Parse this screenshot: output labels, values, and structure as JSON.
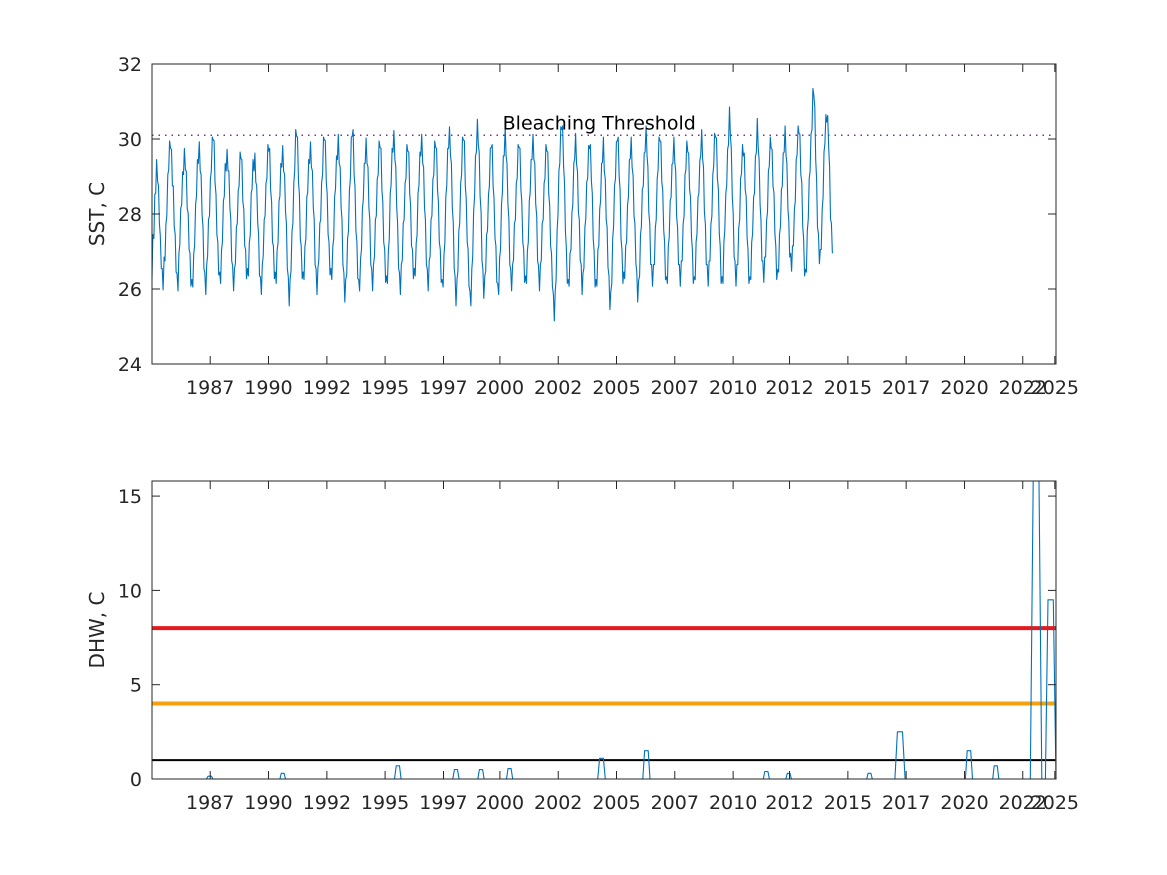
{
  "chart_data": [
    {
      "type": "line",
      "ylabel": "SST, C",
      "ylim": [
        24,
        32
      ],
      "yticks": [
        24,
        26,
        28,
        30,
        32
      ],
      "xlim": [
        "1985-01-01",
        "2025-01-20"
      ],
      "xticks": [
        {
          "date": "1987-08-01",
          "label": "1987"
        },
        {
          "date": "1990-03-01",
          "label": "1990"
        },
        {
          "date": "1992-10-01",
          "label": "1992"
        },
        {
          "date": "1995-05-01",
          "label": "1995"
        },
        {
          "date": "1997-12-01",
          "label": "1997"
        },
        {
          "date": "2000-06-01",
          "label": "2000"
        },
        {
          "date": "2003-01-01",
          "label": "2002"
        },
        {
          "date": "2005-08-01",
          "label": "2005"
        },
        {
          "date": "2008-03-01",
          "label": "2007"
        },
        {
          "date": "2010-10-01",
          "label": "2010"
        },
        {
          "date": "2013-04-01",
          "label": "2012"
        },
        {
          "date": "2015-11-01",
          "label": "2015"
        },
        {
          "date": "2018-06-01",
          "label": "2017"
        },
        {
          "date": "2021-01-01",
          "label": "2020"
        },
        {
          "date": "2023-08-01",
          "label": "2022"
        },
        {
          "date": "2025-01-01",
          "label": "2025"
        }
      ],
      "series": [
        {
          "color": "#0072BD",
          "x_start": "1985-01-01",
          "x_step_days": 15,
          "values": [
            26.4,
            27.2,
            27.6,
            28.4,
            28.8,
            29.2,
            29.0,
            28.5,
            28.0,
            27.3,
            26.8,
            26.3,
            26.1,
            26.6,
            27.0,
            27.6,
            28.2,
            28.8,
            29.3,
            29.7,
            30.0,
            29.6,
            29.0,
            28.5,
            27.8,
            27.2,
            26.7,
            26.3,
            26.2,
            26.7,
            27.3,
            27.9,
            28.5,
            29.0,
            29.3,
            29.5,
            29.3,
            28.9,
            28.4,
            27.9,
            27.3,
            26.7,
            26.2,
            26.0,
            26.3,
            26.8,
            27.4,
            28.0,
            28.6,
            29.2,
            29.6,
            29.8,
            29.4,
            28.8,
            28.1,
            27.4,
            26.8,
            26.3,
            26.1,
            26.4,
            27.0,
            27.6,
            28.2,
            28.8,
            29.4,
            29.8,
            30.1,
            29.7,
            29.1,
            28.4,
            27.7,
            27.0,
            26.5,
            26.2,
            26.4,
            26.9,
            27.5,
            28.1,
            28.6,
            29.1,
            29.4,
            29.6,
            29.4,
            28.9,
            28.3,
            27.6,
            27.0,
            26.5,
            26.2,
            26.3,
            26.8,
            27.4,
            28.0,
            28.5,
            29.0,
            29.4,
            29.6,
            29.2,
            28.6,
            28.0,
            27.4,
            26.8,
            26.4,
            26.3,
            26.6,
            27.1,
            27.7,
            28.3,
            28.8,
            29.2,
            29.4,
            29.5,
            29.1,
            28.5,
            27.9,
            27.2,
            26.6,
            26.2,
            26.1,
            26.4,
            27.0,
            27.6,
            28.2,
            28.7,
            29.2,
            29.6,
            29.8,
            29.5,
            28.9,
            28.2,
            27.5,
            26.9,
            26.4,
            26.2,
            26.4,
            26.9,
            27.5,
            28.1,
            28.6,
            29.1,
            29.5,
            29.7,
            29.4,
            28.8,
            28.2,
            27.5,
            26.8,
            26.2,
            25.8,
            26.0,
            26.6,
            27.3,
            28.0,
            28.7,
            29.4,
            30.0,
            30.2,
            29.8,
            29.1,
            28.4,
            27.6,
            26.9,
            26.4,
            26.2,
            26.5,
            27.0,
            27.6,
            28.2,
            28.7,
            29.2,
            29.6,
            29.8,
            29.5,
            28.9,
            28.3,
            27.6,
            26.9,
            26.4,
            26.1,
            26.3,
            26.9,
            27.5,
            28.1,
            28.7,
            29.3,
            29.8,
            30.1,
            29.7,
            29.1,
            28.4,
            27.7,
            27.0,
            26.5,
            26.3,
            26.5,
            27.0,
            27.6,
            28.2,
            28.8,
            29.3,
            29.7,
            30.0,
            29.6,
            29.0,
            28.3,
            27.6,
            26.9,
            26.3,
            25.9,
            26.0,
            26.5,
            27.1,
            27.8,
            28.5,
            29.2,
            29.8,
            30.2,
            30.0,
            29.3,
            28.6,
            27.8,
            27.0,
            26.4,
            26.0,
            26.2,
            26.7,
            27.3,
            27.9,
            28.5,
            29.1,
            29.6,
            29.9,
            29.6,
            29.0,
            28.3,
            27.6,
            26.9,
            26.4,
            26.2,
            26.4,
            27.0,
            27.6,
            28.2,
            28.8,
            29.3,
            29.7,
            29.9,
            29.5,
            28.9,
            28.2,
            27.5,
            26.8,
            26.3,
            26.1,
            26.4,
            26.9,
            27.6,
            28.3,
            28.9,
            29.5,
            29.9,
            30.1,
            29.7,
            29.0,
            28.3,
            27.5,
            26.8,
            26.3,
            26.1,
            26.4,
            26.9,
            27.5,
            28.1,
            28.7,
            29.2,
            29.6,
            29.8,
            29.4,
            28.8,
            28.1,
            27.4,
            26.8,
            26.4,
            26.3,
            26.6,
            27.1,
            27.7,
            28.3,
            28.9,
            29.4,
            29.8,
            30.0,
            29.6,
            29.0,
            28.3,
            27.6,
            26.9,
            26.4,
            26.2,
            26.5,
            27.0,
            27.6,
            28.2,
            28.8,
            29.3,
            29.7,
            29.9,
            29.5,
            28.9,
            28.2,
            27.5,
            26.8,
            26.3,
            26.0,
            26.3,
            26.8,
            27.5,
            28.2,
            28.9,
            29.5,
            30.0,
            30.2,
            29.8,
            29.1,
            28.3,
            27.5,
            26.8,
            26.2,
            25.8,
            26.0,
            26.6,
            27.3,
            28.0,
            28.7,
            29.3,
            29.8,
            30.1,
            29.7,
            29.0,
            28.3,
            27.5,
            26.8,
            26.2,
            25.7,
            25.8,
            26.4,
            27.1,
            27.8,
            28.6,
            29.3,
            29.9,
            30.4,
            30.1,
            29.4,
            28.6,
            27.8,
            27.0,
            26.4,
            26.0,
            26.1,
            26.6,
            27.2,
            27.8,
            28.4,
            29.0,
            29.5,
            29.9,
            29.6,
            29.0,
            28.3,
            27.6,
            26.9,
            26.3,
            25.9,
            26.1,
            26.7,
            27.3,
            28.0,
            28.7,
            29.3,
            29.8,
            30.2,
            29.8,
            29.1,
            28.4,
            27.6,
            26.9,
            26.4,
            26.2,
            26.4,
            26.9,
            27.5,
            28.1,
            28.7,
            29.2,
            29.6,
            29.9,
            29.5,
            28.9,
            28.2,
            27.5,
            26.8,
            26.3,
            26.1,
            26.4,
            26.9,
            27.5,
            28.1,
            28.7,
            29.2,
            29.7,
            30.0,
            29.7,
            29.1,
            28.4,
            27.7,
            27.0,
            26.5,
            26.2,
            26.4,
            26.9,
            27.5,
            28.1,
            28.7,
            29.2,
            29.6,
            29.8,
            29.4,
            28.8,
            28.1,
            27.4,
            26.7,
            26.2,
            25.6,
            25.4,
            25.8,
            26.5,
            27.3,
            28.1,
            28.9,
            29.6,
            30.2,
            30.5,
            30.1,
            29.4,
            28.6,
            27.8,
            27.0,
            26.4,
            26.0,
            26.2,
            26.7,
            27.3,
            27.9,
            28.5,
            29.1,
            29.6,
            29.9,
            29.6,
            29.0,
            28.3,
            27.6,
            26.9,
            26.4,
            26.1,
            26.3,
            26.8,
            27.4,
            28.0,
            28.6,
            29.2,
            29.7,
            30.0,
            29.6,
            29.0,
            28.3,
            27.6,
            26.9,
            26.3,
            26.0,
            26.2,
            26.8,
            27.4,
            28.0,
            28.6,
            29.1,
            29.5,
            29.8,
            29.4,
            28.8,
            28.1,
            27.4,
            26.7,
            26.1,
            25.7,
            25.8,
            26.4,
            27.1,
            27.8,
            28.5,
            29.2,
            29.8,
            30.2,
            29.8,
            29.1,
            28.4,
            27.6,
            26.9,
            26.4,
            26.2,
            26.4,
            26.9,
            27.5,
            28.1,
            28.7,
            29.2,
            29.6,
            29.8,
            29.5,
            28.9,
            28.2,
            27.5,
            26.8,
            26.2,
            25.9,
            26.1,
            26.6,
            27.2,
            27.8,
            28.4,
            29.0,
            29.5,
            29.9,
            30.1,
            29.7,
            29.0,
            28.3,
            27.6,
            26.9,
            26.4,
            26.2,
            26.4,
            26.9,
            27.5,
            28.1,
            28.7,
            29.3,
            29.8,
            30.2,
            29.8,
            29.1,
            28.4,
            27.7,
            27.0,
            26.5,
            26.2,
            26.4,
            26.9,
            27.5,
            28.1,
            28.7,
            29.2,
            29.6,
            29.8,
            29.5,
            28.9,
            28.2,
            27.5,
            26.9,
            26.4,
            26.2,
            26.5,
            27.0,
            27.6,
            28.2,
            28.8,
            29.3,
            29.7,
            29.9,
            29.5,
            28.9,
            28.2,
            27.5,
            26.8,
            26.4,
            26.2,
            26.5,
            27.0,
            27.6,
            28.2,
            28.8,
            29.3,
            29.8,
            30.0,
            29.6,
            29.0,
            28.3,
            27.6,
            26.9,
            26.4,
            26.2,
            26.5,
            27.0,
            27.6,
            28.2,
            28.8,
            29.4,
            29.9,
            30.3,
            29.9,
            29.2,
            28.4,
            27.6,
            26.9,
            26.4,
            26.2,
            26.4,
            27.0,
            27.7,
            28.3,
            29.0,
            29.6,
            30.1,
            30.6,
            30.2,
            29.5,
            28.7,
            27.9,
            27.1,
            26.5,
            26.2,
            26.4,
            26.9,
            27.5,
            28.1,
            28.7,
            29.2,
            29.6,
            29.8,
            29.5,
            28.9,
            28.2,
            27.5,
            26.8,
            26.4,
            26.2,
            26.5,
            27.0,
            27.6,
            28.2,
            28.8,
            29.4,
            29.9,
            30.3,
            29.9,
            29.2,
            28.5,
            27.7,
            27.0,
            26.5,
            26.3,
            26.6,
            27.1,
            27.7,
            28.3,
            28.9,
            29.4,
            29.8,
            30.0,
            29.6,
            29.0,
            28.3,
            27.6,
            26.9,
            26.5,
            26.4,
            26.7,
            27.2,
            27.8,
            28.4,
            29.0,
            29.5,
            29.9,
            30.1,
            29.7,
            29.1,
            28.4,
            27.7,
            27.1,
            26.7,
            26.6,
            26.9,
            27.4,
            28.0,
            28.6,
            29.2,
            29.7,
            30.1,
            30.4,
            30.0,
            29.3,
            28.6,
            27.8,
            27.1,
            26.6,
            26.4,
            26.7,
            27.3,
            28.0,
            28.7,
            29.4,
            30.0,
            30.5,
            31.1,
            31.3,
            30.6,
            29.7,
            28.8,
            27.9,
            27.2,
            26.8,
            26.8,
            27.3,
            28.0,
            28.7,
            29.4,
            30.0,
            30.4,
            30.7,
            30.5,
            30.0,
            29.0,
            28.0,
            27.5,
            27.2
          ]
        }
      ],
      "threshold": {
        "value": 30.1,
        "color": "#7E2F8E",
        "label": "Bleaching Threshold",
        "label_x": "2000-07-15"
      }
    },
    {
      "type": "line",
      "ylabel": "DHW, C",
      "ylim": [
        0,
        15.8
      ],
      "yticks": [
        0,
        5,
        10,
        15
      ],
      "xlim": [
        "1985-01-01",
        "2025-01-20"
      ],
      "xticks": [
        {
          "date": "1987-08-01",
          "label": "1987"
        },
        {
          "date": "1990-03-01",
          "label": "1990"
        },
        {
          "date": "1992-10-01",
          "label": "1992"
        },
        {
          "date": "1995-05-01",
          "label": "1995"
        },
        {
          "date": "1997-12-01",
          "label": "1997"
        },
        {
          "date": "2000-06-01",
          "label": "2000"
        },
        {
          "date": "2003-01-01",
          "label": "2002"
        },
        {
          "date": "2005-08-01",
          "label": "2005"
        },
        {
          "date": "2008-03-01",
          "label": "2007"
        },
        {
          "date": "2010-10-01",
          "label": "2010"
        },
        {
          "date": "2013-04-01",
          "label": "2012"
        },
        {
          "date": "2015-11-01",
          "label": "2015"
        },
        {
          "date": "2018-06-01",
          "label": "2017"
        },
        {
          "date": "2021-01-01",
          "label": "2020"
        },
        {
          "date": "2023-08-01",
          "label": "2022"
        },
        {
          "date": "2025-01-01",
          "label": "2025"
        }
      ],
      "hlines": [
        {
          "value": 8,
          "color": "#E41A1C",
          "width": 4
        },
        {
          "value": 4,
          "color": "#F5A00F",
          "width": 4
        },
        {
          "value": 1,
          "color": "#000000",
          "width": 2
        }
      ],
      "series": [
        {
          "color": "#0072BD",
          "events": [
            {
              "start": "1987-06-01",
              "end": "1987-09-15",
              "peak": 0.15
            },
            {
              "start": "1990-09-01",
              "end": "1990-12-01",
              "peak": 0.3
            },
            {
              "start": "1995-10-01",
              "end": "1996-01-15",
              "peak": 0.7
            },
            {
              "start": "1998-05-01",
              "end": "1998-08-10",
              "peak": 0.5
            },
            {
              "start": "1999-06-10",
              "end": "1999-09-20",
              "peak": 0.5
            },
            {
              "start": "2000-09-15",
              "end": "2000-12-25",
              "peak": 0.55
            },
            {
              "start": "2004-10-01",
              "end": "2005-02-01",
              "peak": 1.1
            },
            {
              "start": "2006-10-01",
              "end": "2007-01-25",
              "peak": 1.5
            },
            {
              "start": "2012-02-01",
              "end": "2012-05-10",
              "peak": 0.4
            },
            {
              "start": "2013-02-01",
              "end": "2013-05-01",
              "peak": 0.3
            },
            {
              "start": "2016-09-01",
              "end": "2016-12-01",
              "peak": 0.3
            },
            {
              "start": "2017-12-01",
              "end": "2018-05-15",
              "peak": 2.5
            },
            {
              "start": "2021-01-15",
              "end": "2021-05-10",
              "peak": 1.5
            },
            {
              "start": "2022-04-01",
              "end": "2022-07-10",
              "peak": 0.7
            },
            {
              "start": "2023-12-01",
              "end": "2024-06-05",
              "peak": 16.0
            },
            {
              "start": "2024-08-01",
              "end": "2025-01-20",
              "peak": 9.5
            }
          ]
        }
      ]
    }
  ]
}
